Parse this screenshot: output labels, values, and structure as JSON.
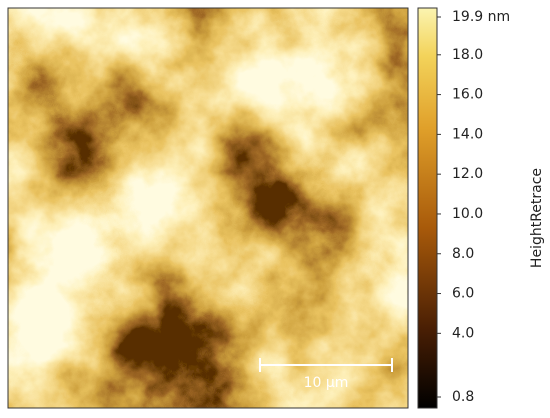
{
  "image": {
    "scale_bar": {
      "label": "10 µm"
    }
  },
  "colorbar": {
    "label": "HeightRetrace",
    "range": [
      0.8,
      19.9
    ],
    "ticks": [
      {
        "value": 19.9,
        "label": "19.9 nm"
      },
      {
        "value": 18,
        "label": "18.0"
      },
      {
        "value": 16,
        "label": "16.0"
      },
      {
        "value": 14,
        "label": "14.0"
      },
      {
        "value": 12,
        "label": "12.0"
      },
      {
        "value": 10,
        "label": "10.0"
      },
      {
        "value": 8,
        "label": "8.0"
      },
      {
        "value": 6,
        "label": "6.0"
      },
      {
        "value": 4,
        "label": "4.0"
      },
      {
        "value": 0.8,
        "label": "0.8"
      }
    ]
  }
}
